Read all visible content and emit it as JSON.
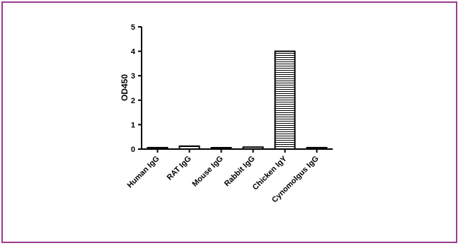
{
  "frame": {
    "border_color": "#9b3c8f"
  },
  "chart_data": {
    "type": "bar",
    "categories": [
      "Human IgG",
      "RAT IgG",
      "Mouse IgG",
      "Rabbit IgG",
      "Chicken IgY",
      "Cynomolgus IgG"
    ],
    "values": [
      0.06,
      0.12,
      0.03,
      0.08,
      4.0,
      0.06
    ],
    "ylabel": "OD450",
    "xlabel": "",
    "ylim": [
      0,
      5
    ],
    "yticks": [
      0,
      1,
      2,
      3,
      4,
      5
    ],
    "bar_fill": "horizontal-hatch",
    "grid": false
  }
}
